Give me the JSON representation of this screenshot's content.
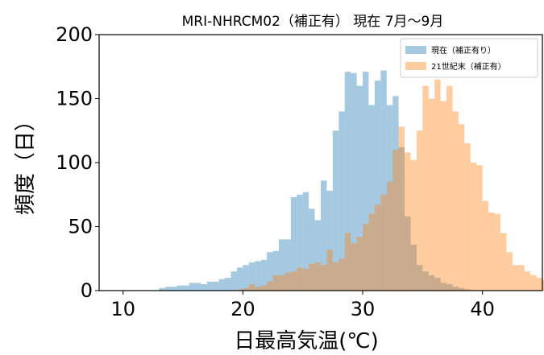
{
  "chart_data": {
    "type": "bar",
    "title": "MRI-NHRCM02（補正有） 現在 7月～9月",
    "xlabel": "日最高気温(℃)",
    "ylabel": "頻度（日）",
    "xlim": [
      8,
      45
    ],
    "ylim": [
      0,
      200
    ],
    "xticks": [
      "10",
      "20",
      "30",
      "40"
    ],
    "yticks": [
      "0",
      "50",
      "100",
      "150",
      "200"
    ],
    "grid": false,
    "legend_position": "top-right",
    "bin_width": 0.5,
    "series": [
      {
        "name": "現在（補正有り）",
        "color": "#1f77b4",
        "opacity": 0.4,
        "x_start": 13.0,
        "values": [
          2,
          3,
          3,
          4,
          4,
          6,
          6,
          5,
          7,
          7,
          9,
          10,
          15,
          18,
          20,
          22,
          23,
          24,
          30,
          31,
          40,
          40,
          73,
          75,
          77,
          64,
          55,
          86,
          78,
          125,
          140,
          171,
          170,
          160,
          171,
          145,
          164,
          172,
          145,
          152,
          112,
          58,
          36,
          20,
          15,
          12,
          10,
          6,
          5,
          3,
          2,
          1
        ]
      },
      {
        "name": "21世紀末（補正有）",
        "color": "#ff7f0e",
        "opacity": 0.4,
        "x_start": 19.5,
        "values": [
          1,
          2,
          5,
          3,
          4,
          7,
          12,
          12,
          14,
          15,
          18,
          17,
          21,
          22,
          20,
          32,
          22,
          25,
          45,
          37,
          42,
          52,
          60,
          67,
          75,
          85,
          110,
          128,
          108,
          102,
          125,
          160,
          150,
          165,
          148,
          160,
          140,
          130,
          115,
          100,
          98,
          70,
          61,
          60,
          45,
          30,
          20,
          20,
          15,
          12,
          10,
          8,
          6,
          4
        ]
      }
    ]
  }
}
